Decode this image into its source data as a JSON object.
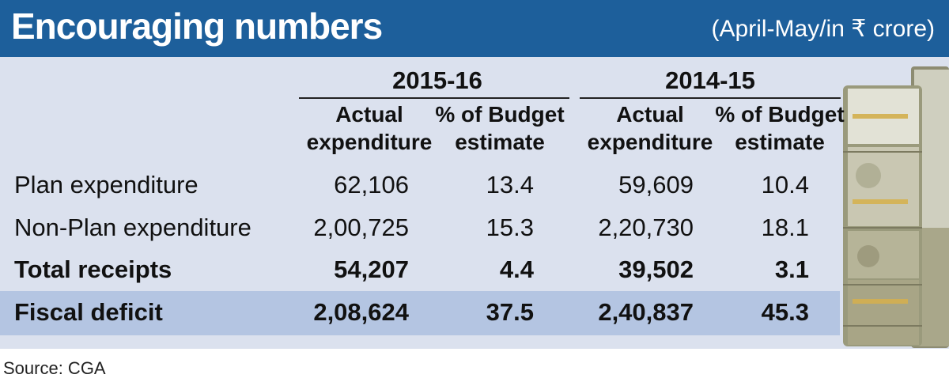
{
  "header": {
    "title": "Encouraging numbers",
    "subtitle": "(April-May/in ₹ crore)"
  },
  "source": "Source: CGA",
  "colors": {
    "header_bg": "#1d5f9b",
    "panel_bg": "#dbe1ee",
    "highlight_row_bg": "#b4c5e2"
  },
  "chart_data": {
    "type": "table",
    "title": "Encouraging numbers",
    "subtitle": "(April-May/in ₹ crore)",
    "periods": [
      "2015-16",
      "2014-15"
    ],
    "columns": [
      "Actual expenditure",
      "% of Budget estimate",
      "Actual expenditure",
      "% of Budget estimate"
    ],
    "rows": [
      {
        "label": "Plan expenditure",
        "values": [
          "62,106",
          "13.4",
          "59,609",
          "10.4"
        ],
        "bold": false
      },
      {
        "label": "Non-Plan expenditure",
        "values": [
          "2,00,725",
          "15.3",
          "2,20,730",
          "18.1"
        ],
        "bold": false
      },
      {
        "label": "Total receipts",
        "values": [
          "54,207",
          "4.4",
          "39,502",
          "3.1"
        ],
        "bold": true
      },
      {
        "label": "Fiscal deficit",
        "values": [
          "2,08,624",
          "37.5",
          "2,40,837",
          "45.3"
        ],
        "bold": true
      }
    ],
    "source": "Source: CGA"
  }
}
